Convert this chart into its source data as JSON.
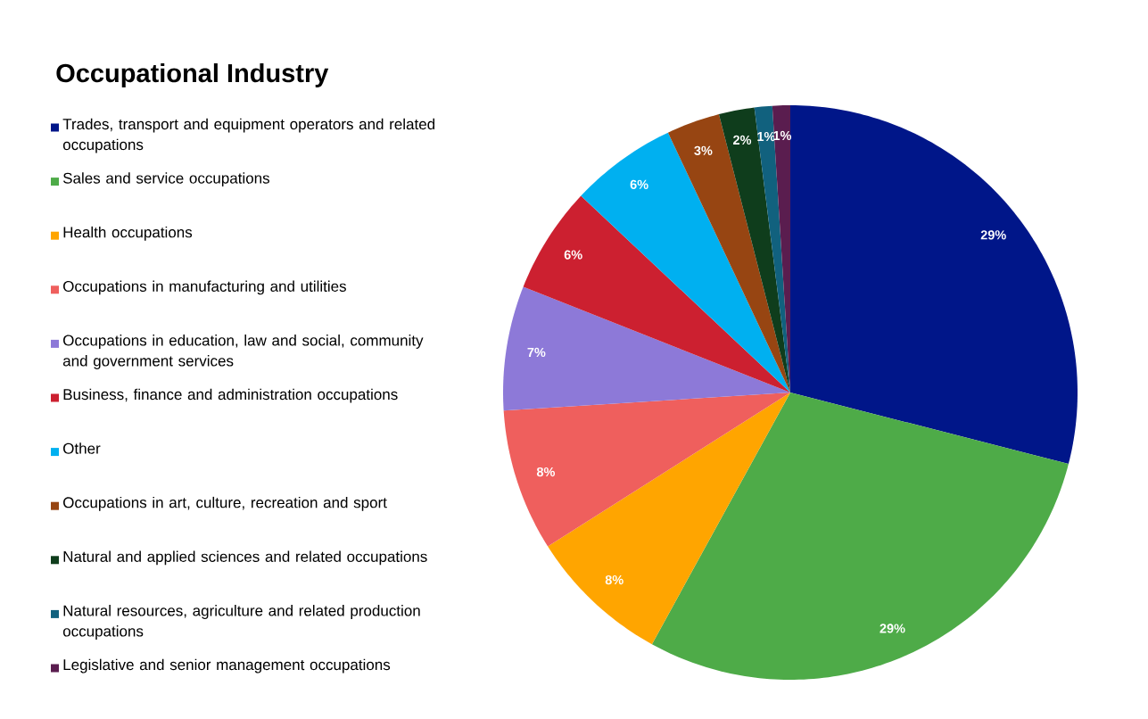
{
  "chart_data": {
    "type": "pie",
    "title": "Occupational Industry",
    "categories": [
      "Trades, transport and equipment operators and related occupations",
      "Sales and service occupations",
      "Health occupations",
      "Occupations in manufacturing and utilities",
      "Occupations in education, law and social, community and government services",
      "Business, finance and administration occupations",
      "Other",
      "Occupations in art, culture, recreation and sport",
      "Natural and applied sciences and related occupations",
      "Natural resources, agriculture and related production occupations",
      "Legislative and senior management occupations"
    ],
    "values": [
      29,
      29,
      8,
      8,
      7,
      6,
      6,
      3,
      2,
      1,
      1
    ],
    "value_labels": [
      "29%",
      "29%",
      "8%",
      "8%",
      "7%",
      "6%",
      "6%",
      "3%",
      "2%",
      "1%",
      "1%"
    ],
    "colors": [
      "#001689",
      "#4eab48",
      "#ffa500",
      "#ef5f5d",
      "#8d79d8",
      "#cc2030",
      "#00b0f0",
      "#974512",
      "#0f3d1c",
      "#11617e",
      "#5a1d4f"
    ],
    "legend": "left"
  }
}
